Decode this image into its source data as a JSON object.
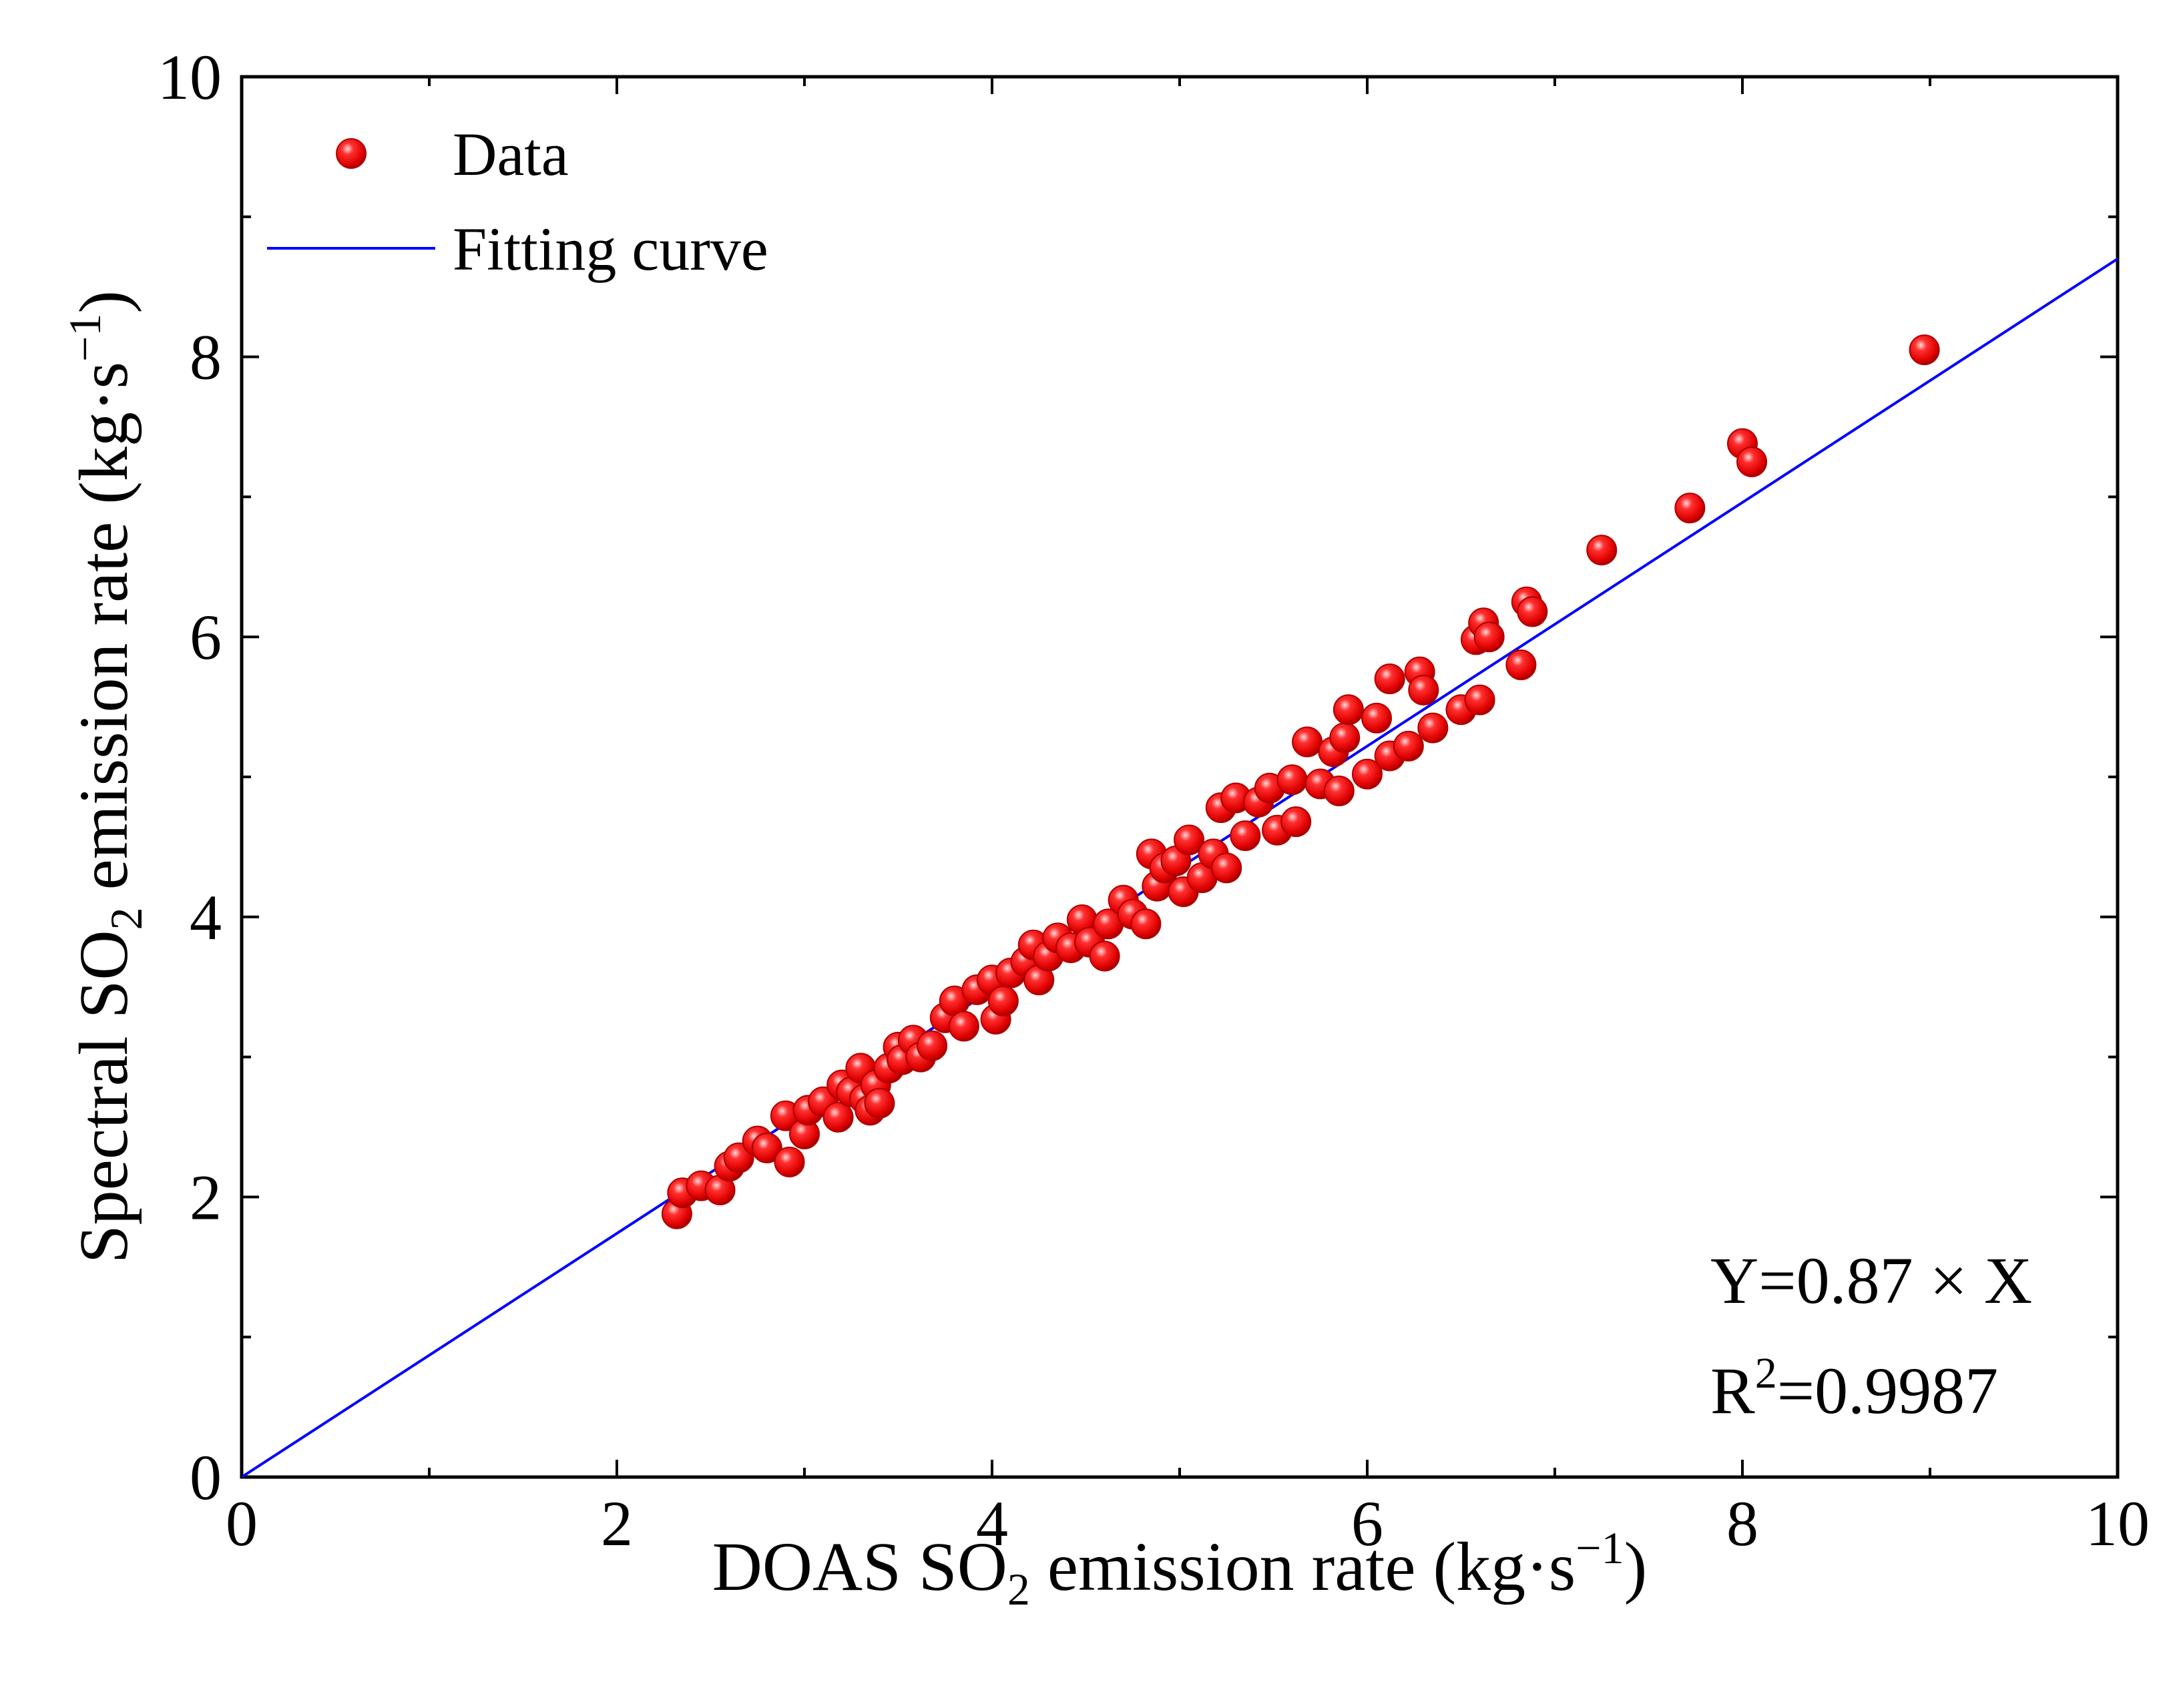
{
  "chart_data": {
    "type": "scatter",
    "xlabel": {
      "main": "DOAS SO",
      "sub": "2",
      "tail": " emission rate (kg·s",
      "sup": "−1",
      "close": ")"
    },
    "ylabel": {
      "main": "Spectral SO",
      "sub": "2",
      "tail": " emission rate (kg·s",
      "sup": "−1",
      "close": ")"
    },
    "xlim": [
      0,
      10
    ],
    "ylim": [
      0,
      10
    ],
    "x_ticks": [
      0,
      2,
      4,
      6,
      8,
      10
    ],
    "y_ticks": [
      0,
      2,
      4,
      6,
      8,
      10
    ],
    "minor_step": 1,
    "grid": false,
    "legend": {
      "position": "top-left",
      "entries": [
        {
          "label": "Data",
          "kind": "marker",
          "color": "#ff0000"
        },
        {
          "label": "Fitting curve",
          "kind": "line",
          "color": "#0000ff"
        }
      ]
    },
    "annotations": {
      "equation": "Y=0.87 × X",
      "r2_prefix": "R",
      "r2_sup": "2",
      "r2_value": "=0.9987"
    },
    "fit": {
      "slope": 0.87,
      "intercept": 0,
      "x_range": [
        0,
        10
      ],
      "color": "#0000ff"
    },
    "series": [
      {
        "name": "Data",
        "color": "#ff0000",
        "points": [
          [
            2.32,
            1.88
          ],
          [
            2.35,
            2.03
          ],
          [
            2.45,
            2.08
          ],
          [
            2.55,
            2.05
          ],
          [
            2.6,
            2.22
          ],
          [
            2.65,
            2.28
          ],
          [
            2.75,
            2.4
          ],
          [
            2.8,
            2.35
          ],
          [
            2.9,
            2.58
          ],
          [
            2.92,
            2.25
          ],
          [
            3.0,
            2.45
          ],
          [
            3.02,
            2.62
          ],
          [
            3.1,
            2.68
          ],
          [
            3.18,
            2.57
          ],
          [
            3.2,
            2.8
          ],
          [
            3.25,
            2.75
          ],
          [
            3.3,
            2.92
          ],
          [
            3.32,
            2.7
          ],
          [
            3.35,
            2.62
          ],
          [
            3.38,
            2.8
          ],
          [
            3.4,
            2.67
          ],
          [
            3.45,
            2.92
          ],
          [
            3.5,
            3.07
          ],
          [
            3.52,
            2.98
          ],
          [
            3.58,
            3.12
          ],
          [
            3.62,
            3.0
          ],
          [
            3.68,
            3.08
          ],
          [
            3.75,
            3.28
          ],
          [
            3.8,
            3.4
          ],
          [
            3.85,
            3.22
          ],
          [
            3.92,
            3.48
          ],
          [
            4.0,
            3.55
          ],
          [
            4.02,
            3.27
          ],
          [
            4.06,
            3.4
          ],
          [
            4.1,
            3.6
          ],
          [
            4.18,
            3.68
          ],
          [
            4.22,
            3.8
          ],
          [
            4.25,
            3.55
          ],
          [
            4.3,
            3.72
          ],
          [
            4.35,
            3.85
          ],
          [
            4.42,
            3.78
          ],
          [
            4.48,
            3.98
          ],
          [
            4.52,
            3.82
          ],
          [
            4.6,
            3.72
          ],
          [
            4.62,
            3.95
          ],
          [
            4.7,
            4.12
          ],
          [
            4.75,
            4.02
          ],
          [
            4.82,
            3.95
          ],
          [
            4.85,
            4.45
          ],
          [
            4.88,
            4.22
          ],
          [
            4.92,
            4.35
          ],
          [
            4.98,
            4.4
          ],
          [
            5.02,
            4.18
          ],
          [
            5.05,
            4.55
          ],
          [
            5.12,
            4.28
          ],
          [
            5.18,
            4.45
          ],
          [
            5.22,
            4.78
          ],
          [
            5.25,
            4.35
          ],
          [
            5.3,
            4.85
          ],
          [
            5.35,
            4.58
          ],
          [
            5.42,
            4.82
          ],
          [
            5.48,
            4.92
          ],
          [
            5.52,
            4.62
          ],
          [
            5.6,
            4.98
          ],
          [
            5.62,
            4.68
          ],
          [
            5.68,
            5.25
          ],
          [
            5.75,
            4.95
          ],
          [
            5.82,
            5.18
          ],
          [
            5.85,
            4.9
          ],
          [
            5.88,
            5.28
          ],
          [
            5.9,
            5.48
          ],
          [
            6.0,
            5.02
          ],
          [
            6.05,
            5.42
          ],
          [
            6.12,
            5.15
          ],
          [
            6.12,
            5.7
          ],
          [
            6.22,
            5.22
          ],
          [
            6.28,
            5.75
          ],
          [
            6.3,
            5.62
          ],
          [
            6.35,
            5.35
          ],
          [
            6.5,
            5.48
          ],
          [
            6.58,
            5.98
          ],
          [
            6.6,
            5.55
          ],
          [
            6.62,
            6.1
          ],
          [
            6.65,
            6.0
          ],
          [
            6.82,
            5.8
          ],
          [
            6.85,
            6.25
          ],
          [
            6.88,
            6.18
          ],
          [
            7.25,
            6.62
          ],
          [
            7.72,
            6.92
          ],
          [
            8.0,
            7.38
          ],
          [
            8.05,
            7.25
          ],
          [
            8.97,
            8.05
          ]
        ]
      }
    ]
  }
}
